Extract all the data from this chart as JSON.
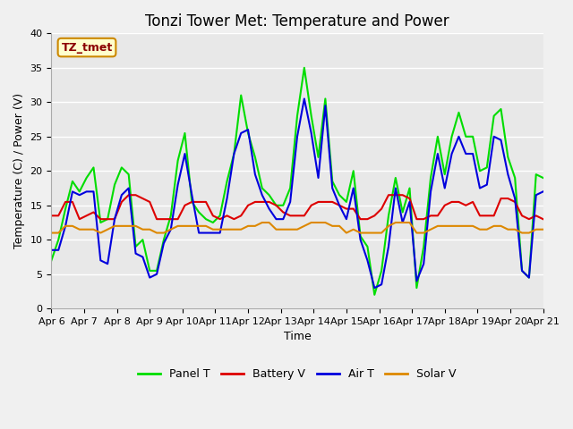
{
  "title": "Tonzi Tower Met: Temperature and Power",
  "xlabel": "Time",
  "ylabel": "Temperature (C) / Power (V)",
  "ylim": [
    0,
    40
  ],
  "xlim": [
    0,
    15
  ],
  "annotation": "TZ_tmet",
  "legend_labels": [
    "Panel T",
    "Battery V",
    "Air T",
    "Solar V"
  ],
  "line_colors": [
    "#00dd00",
    "#dd0000",
    "#0000dd",
    "#dd8800"
  ],
  "xtick_labels": [
    "Apr 6",
    "Apr 7",
    "Apr 8",
    "Apr 9",
    "Apr 10",
    "Apr 11",
    "Apr 12",
    "Apr 13",
    "Apr 14",
    "Apr 15",
    "Apr 16",
    "Apr 17",
    "Apr 18",
    "Apr 19",
    "Apr 20",
    "Apr 21"
  ],
  "ytick_values": [
    0,
    5,
    10,
    15,
    20,
    25,
    30,
    35,
    40
  ],
  "plot_bg": "#e8e8e8",
  "fig_bg": "#f0f0f0",
  "grid_color": "#ffffff",
  "title_fontsize": 12,
  "label_fontsize": 9,
  "tick_fontsize": 8,
  "annot_fontsize": 9,
  "legend_fontsize": 9,
  "linewidth": 1.5,
  "panel_t": [
    7.0,
    10.0,
    14.5,
    18.5,
    17.0,
    19.0,
    20.5,
    12.5,
    13.0,
    18.0,
    20.5,
    19.5,
    9.0,
    10.0,
    5.5,
    5.5,
    10.0,
    13.5,
    21.5,
    25.5,
    15.5,
    14.0,
    13.0,
    12.5,
    13.5,
    18.5,
    22.5,
    31.0,
    25.5,
    22.0,
    17.5,
    16.5,
    15.0,
    15.0,
    17.5,
    28.0,
    35.0,
    28.0,
    22.0,
    30.5,
    18.5,
    16.5,
    15.5,
    20.0,
    10.5,
    9.0,
    2.0,
    5.5,
    13.5,
    19.0,
    14.0,
    17.5,
    3.0,
    9.0,
    19.0,
    25.0,
    19.5,
    25.0,
    28.5,
    25.0,
    25.0,
    20.0,
    20.5,
    28.0,
    29.0,
    22.0,
    19.0,
    5.5,
    4.5,
    19.5,
    19.0
  ],
  "battery_v": [
    13.5,
    13.5,
    15.5,
    15.5,
    13.0,
    13.5,
    14.0,
    13.0,
    13.0,
    13.0,
    15.5,
    16.5,
    16.5,
    16.0,
    15.5,
    13.0,
    13.0,
    13.0,
    13.0,
    15.0,
    15.5,
    15.5,
    15.5,
    13.5,
    13.0,
    13.5,
    13.0,
    13.5,
    15.0,
    15.5,
    15.5,
    15.5,
    15.0,
    14.0,
    13.5,
    13.5,
    13.5,
    15.0,
    15.5,
    15.5,
    15.5,
    15.0,
    14.5,
    14.5,
    13.0,
    13.0,
    13.5,
    14.5,
    16.5,
    16.5,
    16.5,
    16.0,
    13.0,
    13.0,
    13.5,
    13.5,
    15.0,
    15.5,
    15.5,
    15.0,
    15.5,
    13.5,
    13.5,
    13.5,
    16.0,
    16.0,
    15.5,
    13.5,
    13.0,
    13.5,
    13.0
  ],
  "air_t": [
    8.5,
    8.5,
    12.0,
    17.0,
    16.5,
    17.0,
    17.0,
    7.0,
    6.5,
    13.0,
    16.5,
    17.5,
    8.0,
    7.5,
    4.5,
    5.0,
    9.5,
    11.5,
    18.0,
    22.5,
    16.5,
    11.0,
    11.0,
    11.0,
    11.0,
    16.0,
    22.5,
    25.5,
    26.0,
    19.5,
    16.5,
    14.5,
    13.0,
    13.0,
    15.5,
    25.0,
    30.5,
    25.5,
    19.0,
    29.5,
    17.5,
    15.0,
    13.0,
    17.5,
    10.0,
    7.0,
    3.0,
    3.5,
    9.0,
    17.5,
    12.5,
    15.5,
    4.0,
    6.5,
    17.0,
    22.5,
    17.5,
    22.5,
    25.0,
    22.5,
    22.5,
    17.5,
    18.0,
    25.0,
    24.5,
    19.5,
    16.0,
    5.5,
    4.5,
    16.5,
    17.0
  ],
  "solar_v": [
    11.0,
    11.0,
    12.0,
    12.0,
    11.5,
    11.5,
    11.5,
    11.0,
    11.5,
    12.0,
    12.0,
    12.0,
    12.0,
    11.5,
    11.5,
    11.0,
    11.0,
    11.5,
    12.0,
    12.0,
    12.0,
    12.0,
    12.0,
    11.5,
    11.5,
    11.5,
    11.5,
    11.5,
    12.0,
    12.0,
    12.5,
    12.5,
    11.5,
    11.5,
    11.5,
    11.5,
    12.0,
    12.5,
    12.5,
    12.5,
    12.0,
    12.0,
    11.0,
    11.5,
    11.0,
    11.0,
    11.0,
    11.0,
    12.0,
    12.5,
    12.5,
    12.5,
    11.0,
    11.0,
    11.5,
    12.0,
    12.0,
    12.0,
    12.0,
    12.0,
    12.0,
    11.5,
    11.5,
    12.0,
    12.0,
    11.5,
    11.5,
    11.0,
    11.0,
    11.5,
    11.5
  ]
}
